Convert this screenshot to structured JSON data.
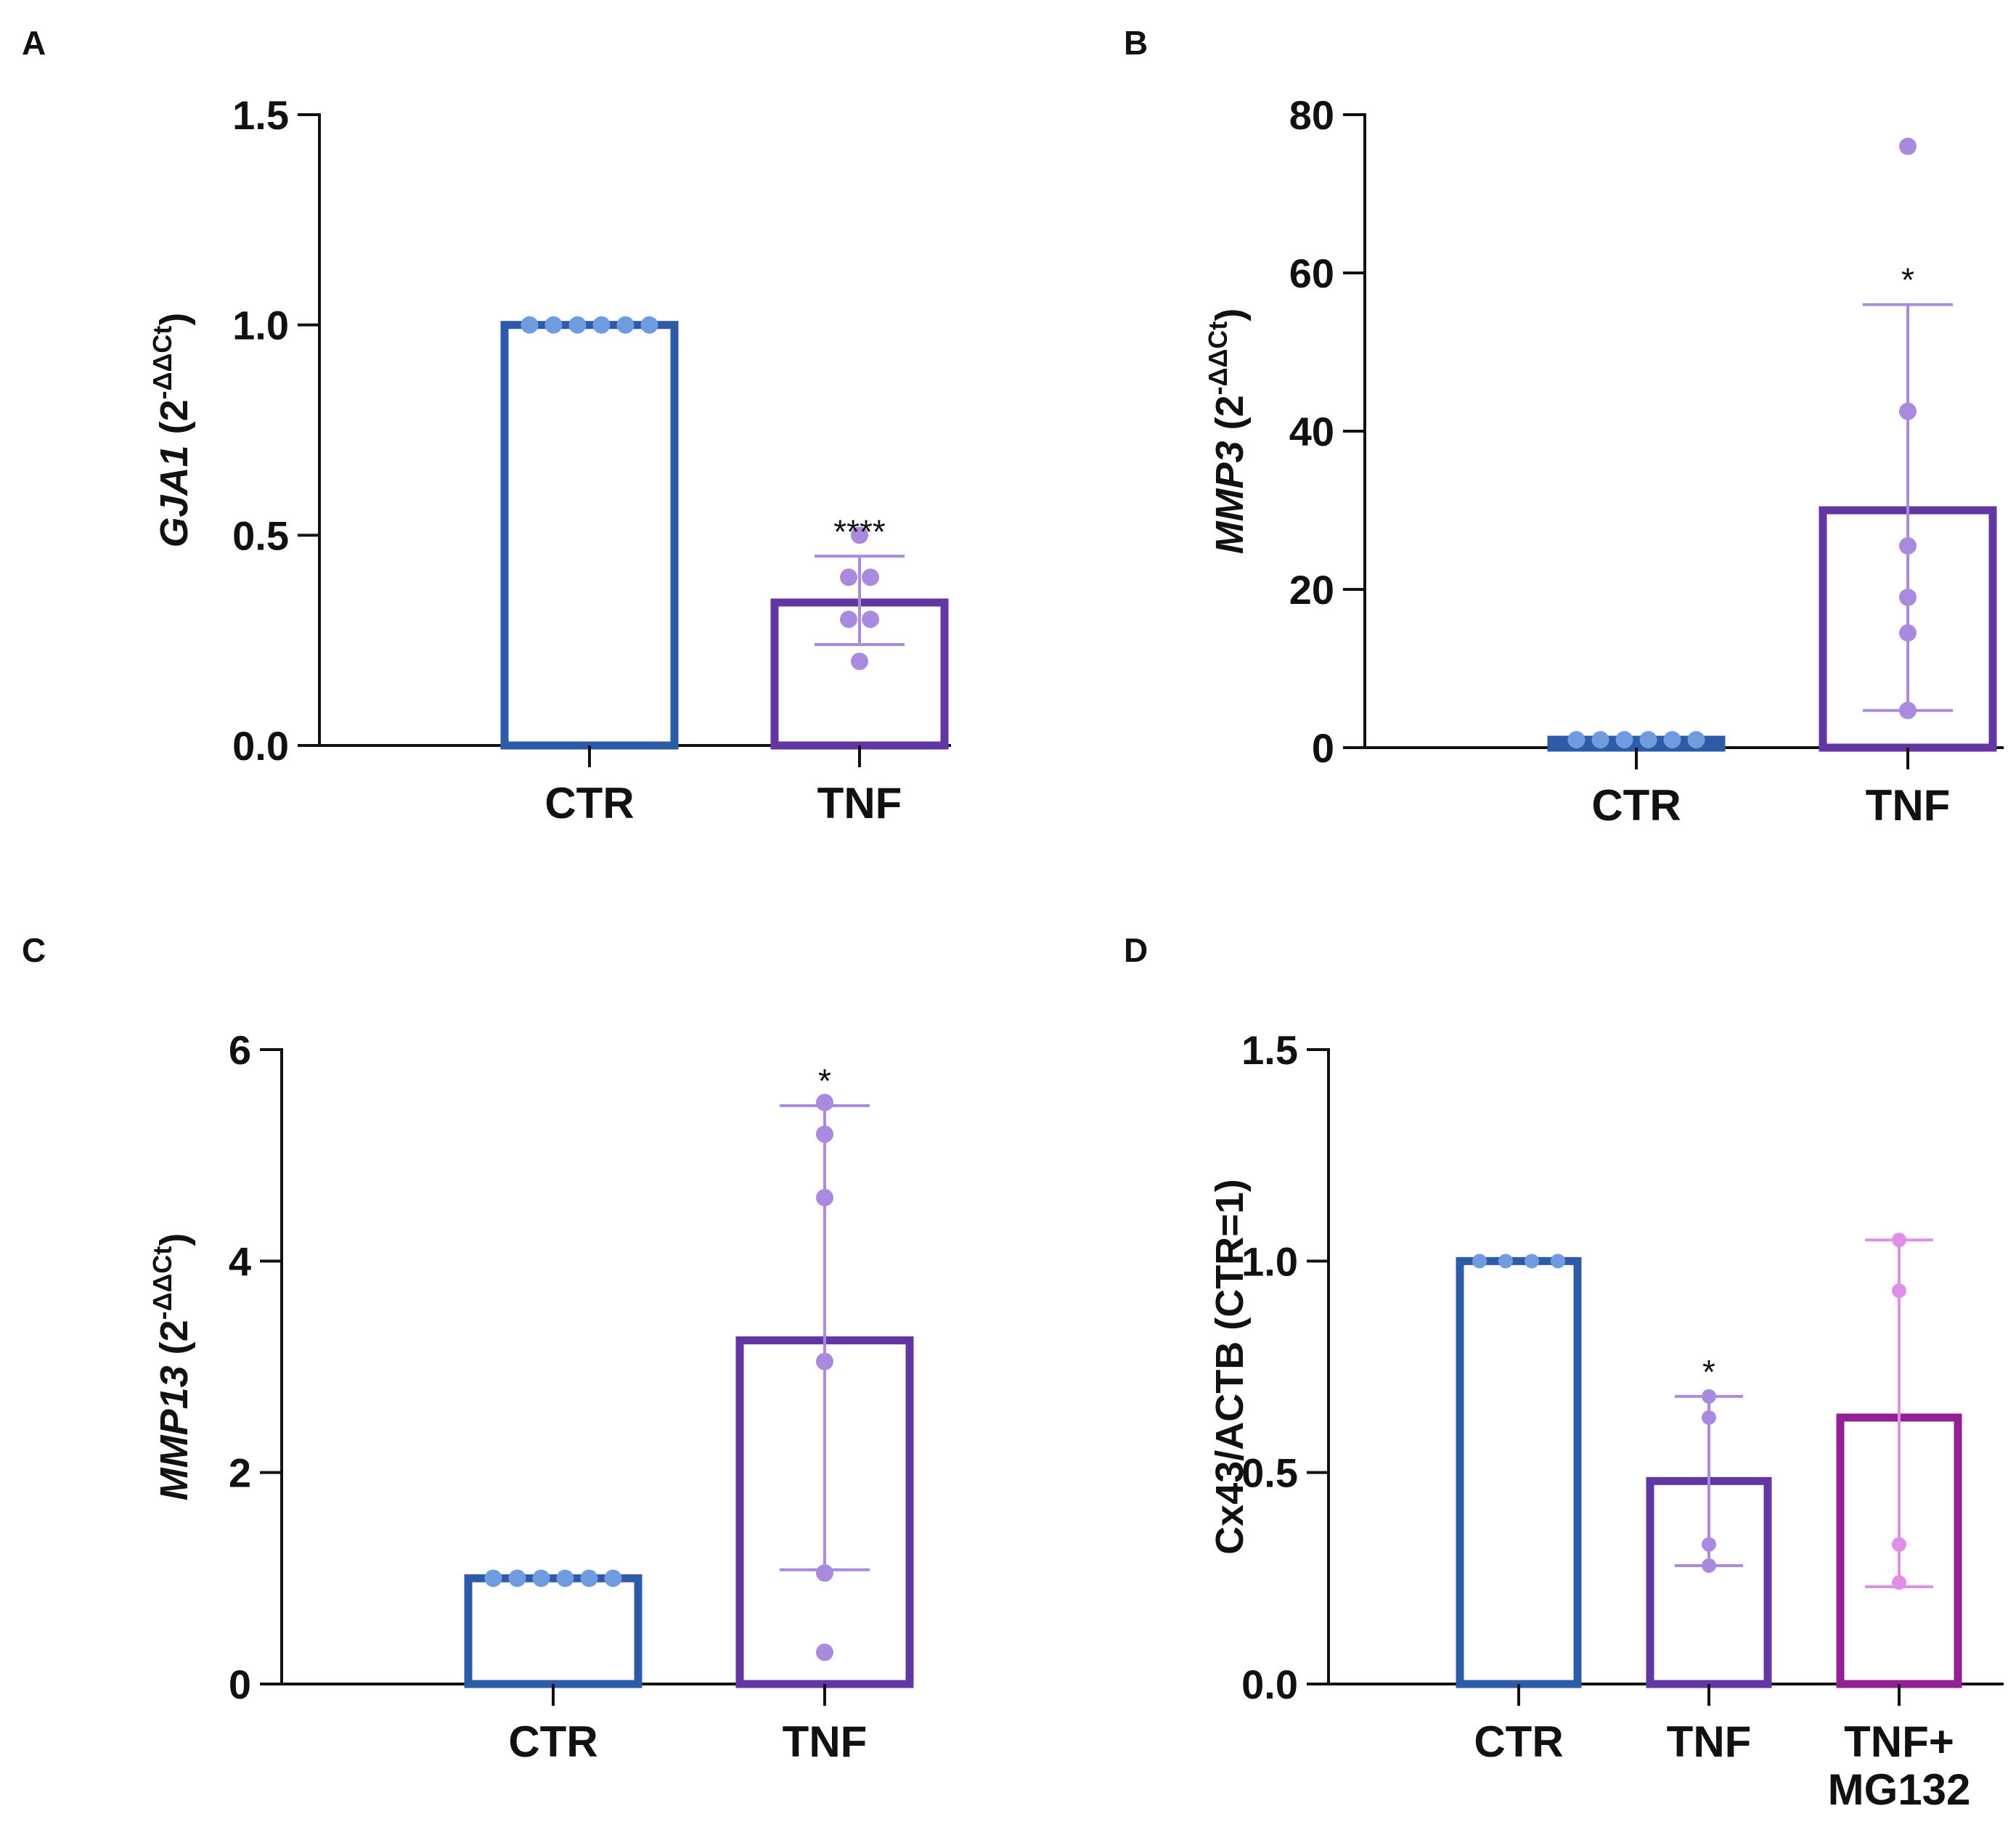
{
  "chart_data": [
    {
      "type": "bar",
      "panel": "A",
      "ylabel_gene": "GJA1",
      "ylabel_unit": " (2",
      "ylabel_sup": "-ΔΔCt",
      "ylabel_close": ")",
      "ylim": [
        0,
        1.5
      ],
      "yticks": [
        0,
        0.5,
        1.0,
        1.5
      ],
      "ytick_labels": [
        "0.0",
        "0.5",
        "1.0",
        "1.5"
      ],
      "categories": [
        "CTR",
        "TNF"
      ],
      "values": [
        1.0,
        0.34
      ],
      "errors": [
        {
          "low": 1.0,
          "high": 1.0
        },
        {
          "low": 0.24,
          "high": 0.45
        }
      ],
      "points": [
        [
          1,
          1,
          1,
          1,
          1,
          1
        ],
        [
          0.5,
          0.4,
          0.4,
          0.3,
          0.3,
          0.2
        ]
      ],
      "significance": [
        "",
        "****"
      ],
      "colors": [
        "#2e5ba8",
        "#6236a3"
      ],
      "point_colors": [
        "#6f9be0",
        "#a98ade"
      ]
    },
    {
      "type": "bar",
      "panel": "B",
      "ylabel_gene": "MMP3",
      "ylabel_unit": " (2",
      "ylabel_sup": "-ΔΔCt",
      "ylabel_close": ")",
      "ylim": [
        0,
        80
      ],
      "yticks": [
        0,
        20,
        40,
        60,
        80
      ],
      "ytick_labels": [
        "0",
        "20",
        "40",
        "60",
        "80"
      ],
      "categories": [
        "CTR",
        "TNF"
      ],
      "values": [
        1.0,
        30.0
      ],
      "errors": [
        {
          "low": 1.0,
          "high": 1.0
        },
        {
          "low": 4.7,
          "high": 56.0
        }
      ],
      "points": [
        [
          1,
          1,
          1,
          1,
          1,
          1
        ],
        [
          76,
          42.5,
          25.5,
          19,
          14.5,
          4.7
        ]
      ],
      "significance": [
        "",
        "*"
      ],
      "colors": [
        "#2e5ba8",
        "#6236a3"
      ],
      "point_colors": [
        "#6f9be0",
        "#a98ade"
      ]
    },
    {
      "type": "bar",
      "panel": "C",
      "ylabel_gene": "MMP13",
      "ylabel_unit": " (2",
      "ylabel_sup": "-ΔΔCt",
      "ylabel_close": ")",
      "ylim": [
        0,
        6
      ],
      "yticks": [
        0,
        2,
        4,
        6
      ],
      "ytick_labels": [
        "0",
        "2",
        "4",
        "6"
      ],
      "categories": [
        "CTR",
        "TNF"
      ],
      "values": [
        1.0,
        3.25
      ],
      "errors": [
        {
          "low": 1.0,
          "high": 1.0
        },
        {
          "low": 1.08,
          "high": 5.47
        }
      ],
      "points": [
        [
          1,
          1,
          1,
          1,
          1,
          1
        ],
        [
          5.5,
          5.2,
          4.6,
          3.05,
          1.05,
          0.3
        ]
      ],
      "significance": [
        "",
        "*"
      ],
      "colors": [
        "#2e5ba8",
        "#6236a3"
      ],
      "point_colors": [
        "#6f9be0",
        "#a98ade"
      ]
    },
    {
      "type": "bar",
      "panel": "D",
      "ylabel_gene": "",
      "ylabel_unit": "Cx43/ACTB (CTR=1)",
      "ylabel_sup": "",
      "ylabel_close": "",
      "ylim": [
        0,
        1.5
      ],
      "yticks": [
        0,
        0.5,
        1.0,
        1.5
      ],
      "ytick_labels": [
        "0.0",
        "0.5",
        "1.0",
        "1.5"
      ],
      "categories": [
        "CTR",
        "TNF",
        "TNF+ MG132"
      ],
      "category_lines": [
        [
          "CTR"
        ],
        [
          "TNF"
        ],
        [
          "TNF+",
          "MG132"
        ]
      ],
      "values": [
        1.0,
        0.48,
        0.63
      ],
      "errors": [
        {
          "low": 1.0,
          "high": 1.0
        },
        {
          "low": 0.28,
          "high": 0.68
        },
        {
          "low": 0.23,
          "high": 1.05
        }
      ],
      "points": [
        [
          1,
          1,
          1,
          1
        ],
        [
          0.68,
          0.63,
          0.33,
          0.28
        ],
        [
          1.05,
          0.93,
          0.33,
          0.24
        ]
      ],
      "significance": [
        "",
        "*",
        ""
      ],
      "colors": [
        "#2e5ba8",
        "#6236a3",
        "#932194"
      ],
      "point_colors": [
        "#6f9be0",
        "#a98ade",
        "#e08fe8"
      ]
    }
  ]
}
